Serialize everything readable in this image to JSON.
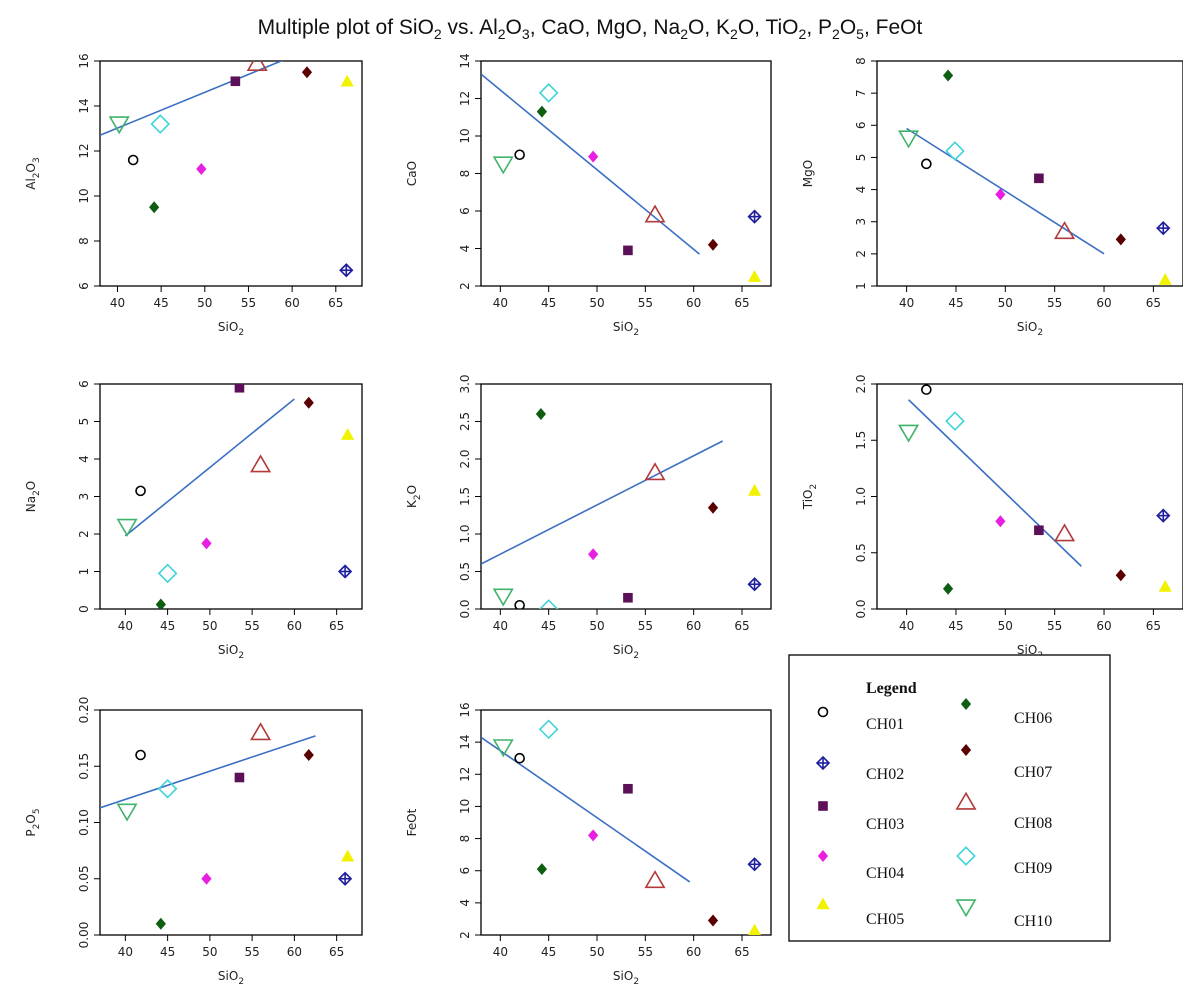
{
  "title": "Multiple plot of SiO₂ vs. Al₂O₃, CaO, MgO, Na₂O, K₂O, TiO₂, P₂O₅, FeOt",
  "legend": {
    "title": "Legend",
    "entries": [
      {
        "label": "CH01",
        "marker": "circle-open",
        "color": "#000000"
      },
      {
        "label": "CH02",
        "marker": "diamond-plus",
        "color": "#1f1f9e"
      },
      {
        "label": "CH03",
        "marker": "square-filled",
        "color": "#5b1057"
      },
      {
        "label": "CH04",
        "marker": "diamond-filled",
        "color": "#e81ee0"
      },
      {
        "label": "CH05",
        "marker": "triangle-filled",
        "color": "#f2f200"
      },
      {
        "label": "CH06",
        "marker": "diamond-filled",
        "color": "#0e5e12"
      },
      {
        "label": "CH07",
        "marker": "diamond-filled",
        "color": "#5a0000"
      },
      {
        "label": "CH08",
        "marker": "triangle-open",
        "color": "#b23a3a"
      },
      {
        "label": "CH09",
        "marker": "diamond-open",
        "color": "#42d4d8"
      },
      {
        "label": "CH10",
        "marker": "triangle-down-open",
        "color": "#3fb36a"
      }
    ]
  },
  "chart_data": [
    {
      "type": "scatter",
      "title": "",
      "xlabel": "SiO2",
      "ylabel": "Al2O3",
      "xlim": [
        38,
        68
      ],
      "ylim": [
        6,
        16
      ],
      "xticks": [
        "40",
        "45",
        "50",
        "55",
        "60",
        "65"
      ],
      "yticks": [
        "6",
        "8",
        "10",
        "12",
        "14",
        "16"
      ],
      "x": [
        41.8,
        66.2,
        53.5,
        49.6,
        66.3,
        44.2,
        61.7,
        56.0,
        44.9,
        40.2
      ],
      "y": [
        11.6,
        6.7,
        15.1,
        11.2,
        15.1,
        9.5,
        15.5,
        15.9,
        13.2,
        13.2
      ],
      "trend": [
        [
          38,
          12.7
        ],
        [
          60,
          16.2
        ]
      ]
    },
    {
      "type": "scatter",
      "title": "",
      "xlabel": "SiO2",
      "ylabel": "CaO",
      "xlim": [
        38,
        68
      ],
      "ylim": [
        2,
        14
      ],
      "xticks": [
        "40",
        "45",
        "50",
        "55",
        "60",
        "65"
      ],
      "yticks": [
        "2",
        "4",
        "6",
        "8",
        "10",
        "12",
        "14"
      ],
      "x": [
        42.0,
        66.3,
        53.2,
        49.6,
        66.3,
        44.3,
        62.0,
        56.0,
        45.0,
        40.3
      ],
      "y": [
        9.0,
        5.7,
        3.9,
        8.9,
        2.5,
        11.3,
        4.2,
        5.8,
        12.3,
        8.5
      ],
      "trend": [
        [
          38,
          13.3
        ],
        [
          60.6,
          3.7
        ]
      ]
    },
    {
      "type": "scatter",
      "title": "",
      "xlabel": "SiO2",
      "ylabel": "MgO",
      "xlim": [
        37,
        68
      ],
      "ylim": [
        1,
        8
      ],
      "xticks": [
        "40",
        "45",
        "50",
        "55",
        "60",
        "65"
      ],
      "yticks": [
        "1",
        "2",
        "3",
        "4",
        "5",
        "6",
        "7",
        "8"
      ],
      "x": [
        42.0,
        66.0,
        53.4,
        49.5,
        66.2,
        44.2,
        61.7,
        56.0,
        44.9,
        40.2
      ],
      "y": [
        4.8,
        2.8,
        4.35,
        3.85,
        1.2,
        7.55,
        2.45,
        2.7,
        5.2,
        5.6
      ],
      "trend": [
        [
          40,
          5.9
        ],
        [
          60,
          2.0
        ]
      ]
    },
    {
      "type": "scatter",
      "title": "",
      "xlabel": "SiO2",
      "ylabel": "Na2O",
      "xlim": [
        37,
        68
      ],
      "ylim": [
        0,
        6
      ],
      "xticks": [
        "40",
        "45",
        "50",
        "55",
        "60",
        "65"
      ],
      "yticks": [
        "0",
        "1",
        "2",
        "3",
        "4",
        "5",
        "6"
      ],
      "x": [
        41.8,
        66.0,
        53.5,
        49.6,
        66.3,
        44.2,
        61.7,
        56.0,
        45.0,
        40.2
      ],
      "y": [
        3.15,
        1.0,
        5.9,
        1.75,
        4.65,
        0.12,
        5.5,
        3.85,
        0.95,
        2.2
      ],
      "trend": [
        [
          40,
          1.95
        ],
        [
          60,
          5.6
        ]
      ]
    },
    {
      "type": "scatter",
      "title": "",
      "xlabel": "SiO2",
      "ylabel": "K2O",
      "xlim": [
        38,
        68
      ],
      "ylim": [
        0,
        3
      ],
      "xticks": [
        "40",
        "45",
        "50",
        "55",
        "60",
        "65"
      ],
      "yticks": [
        "0.0",
        "0.5",
        "1.0",
        "1.5",
        "2.0",
        "2.5",
        "3.0"
      ],
      "x": [
        42.0,
        66.3,
        53.2,
        49.6,
        66.3,
        44.2,
        62.0,
        56.0,
        45.0,
        40.3
      ],
      "y": [
        0.05,
        0.33,
        0.15,
        0.73,
        1.58,
        2.6,
        1.35,
        1.82,
        0.0,
        0.17
      ],
      "trend": [
        [
          38,
          0.6
        ],
        [
          63,
          2.24
        ]
      ]
    },
    {
      "type": "scatter",
      "title": "",
      "xlabel": "SiO2",
      "ylabel": "TiO2",
      "xlim": [
        37,
        68
      ],
      "ylim": [
        0,
        2
      ],
      "xticks": [
        "40",
        "45",
        "50",
        "55",
        "60",
        "65"
      ],
      "yticks": [
        "0.0",
        "0.5",
        "1.0",
        "1.5",
        "2.0"
      ],
      "x": [
        42.0,
        66.0,
        53.4,
        49.5,
        66.2,
        44.2,
        61.7,
        56.0,
        44.9,
        40.2
      ],
      "y": [
        1.95,
        0.83,
        0.7,
        0.78,
        0.2,
        0.18,
        0.3,
        0.67,
        1.67,
        1.57
      ],
      "trend": [
        [
          40.2,
          1.86
        ],
        [
          57.7,
          0.38
        ]
      ]
    },
    {
      "type": "scatter",
      "title": "",
      "xlabel": "SiO2",
      "ylabel": "P2O5",
      "xlim": [
        37,
        68
      ],
      "ylim": [
        0,
        0.2
      ],
      "xticks": [
        "40",
        "45",
        "50",
        "55",
        "60",
        "65"
      ],
      "yticks": [
        "0.00",
        "0.05",
        "0.10",
        "0.15",
        "0.20"
      ],
      "x": [
        41.8,
        66.0,
        53.5,
        49.6,
        66.3,
        44.2,
        61.7,
        56.0,
        45.0,
        40.2
      ],
      "y": [
        0.16,
        0.05,
        0.14,
        0.05,
        0.07,
        0.01,
        0.16,
        0.18,
        0.13,
        0.11
      ],
      "trend": [
        [
          37,
          0.113
        ],
        [
          62.5,
          0.177
        ]
      ]
    },
    {
      "type": "scatter",
      "title": "",
      "xlabel": "SiO2",
      "ylabel": "FeOt",
      "xlim": [
        38,
        68
      ],
      "ylim": [
        2,
        16
      ],
      "xticks": [
        "40",
        "45",
        "50",
        "55",
        "60",
        "65"
      ],
      "yticks": [
        "2",
        "4",
        "6",
        "8",
        "10",
        "12",
        "14",
        "16"
      ],
      "x": [
        42.0,
        66.3,
        53.2,
        49.6,
        66.3,
        44.3,
        62.0,
        56.0,
        45.0,
        40.3
      ],
      "y": [
        13.0,
        6.4,
        11.1,
        8.2,
        2.3,
        6.1,
        2.9,
        5.4,
        14.8,
        13.7
      ],
      "trend": [
        [
          38,
          14.3
        ],
        [
          59.6,
          5.3
        ]
      ]
    }
  ]
}
